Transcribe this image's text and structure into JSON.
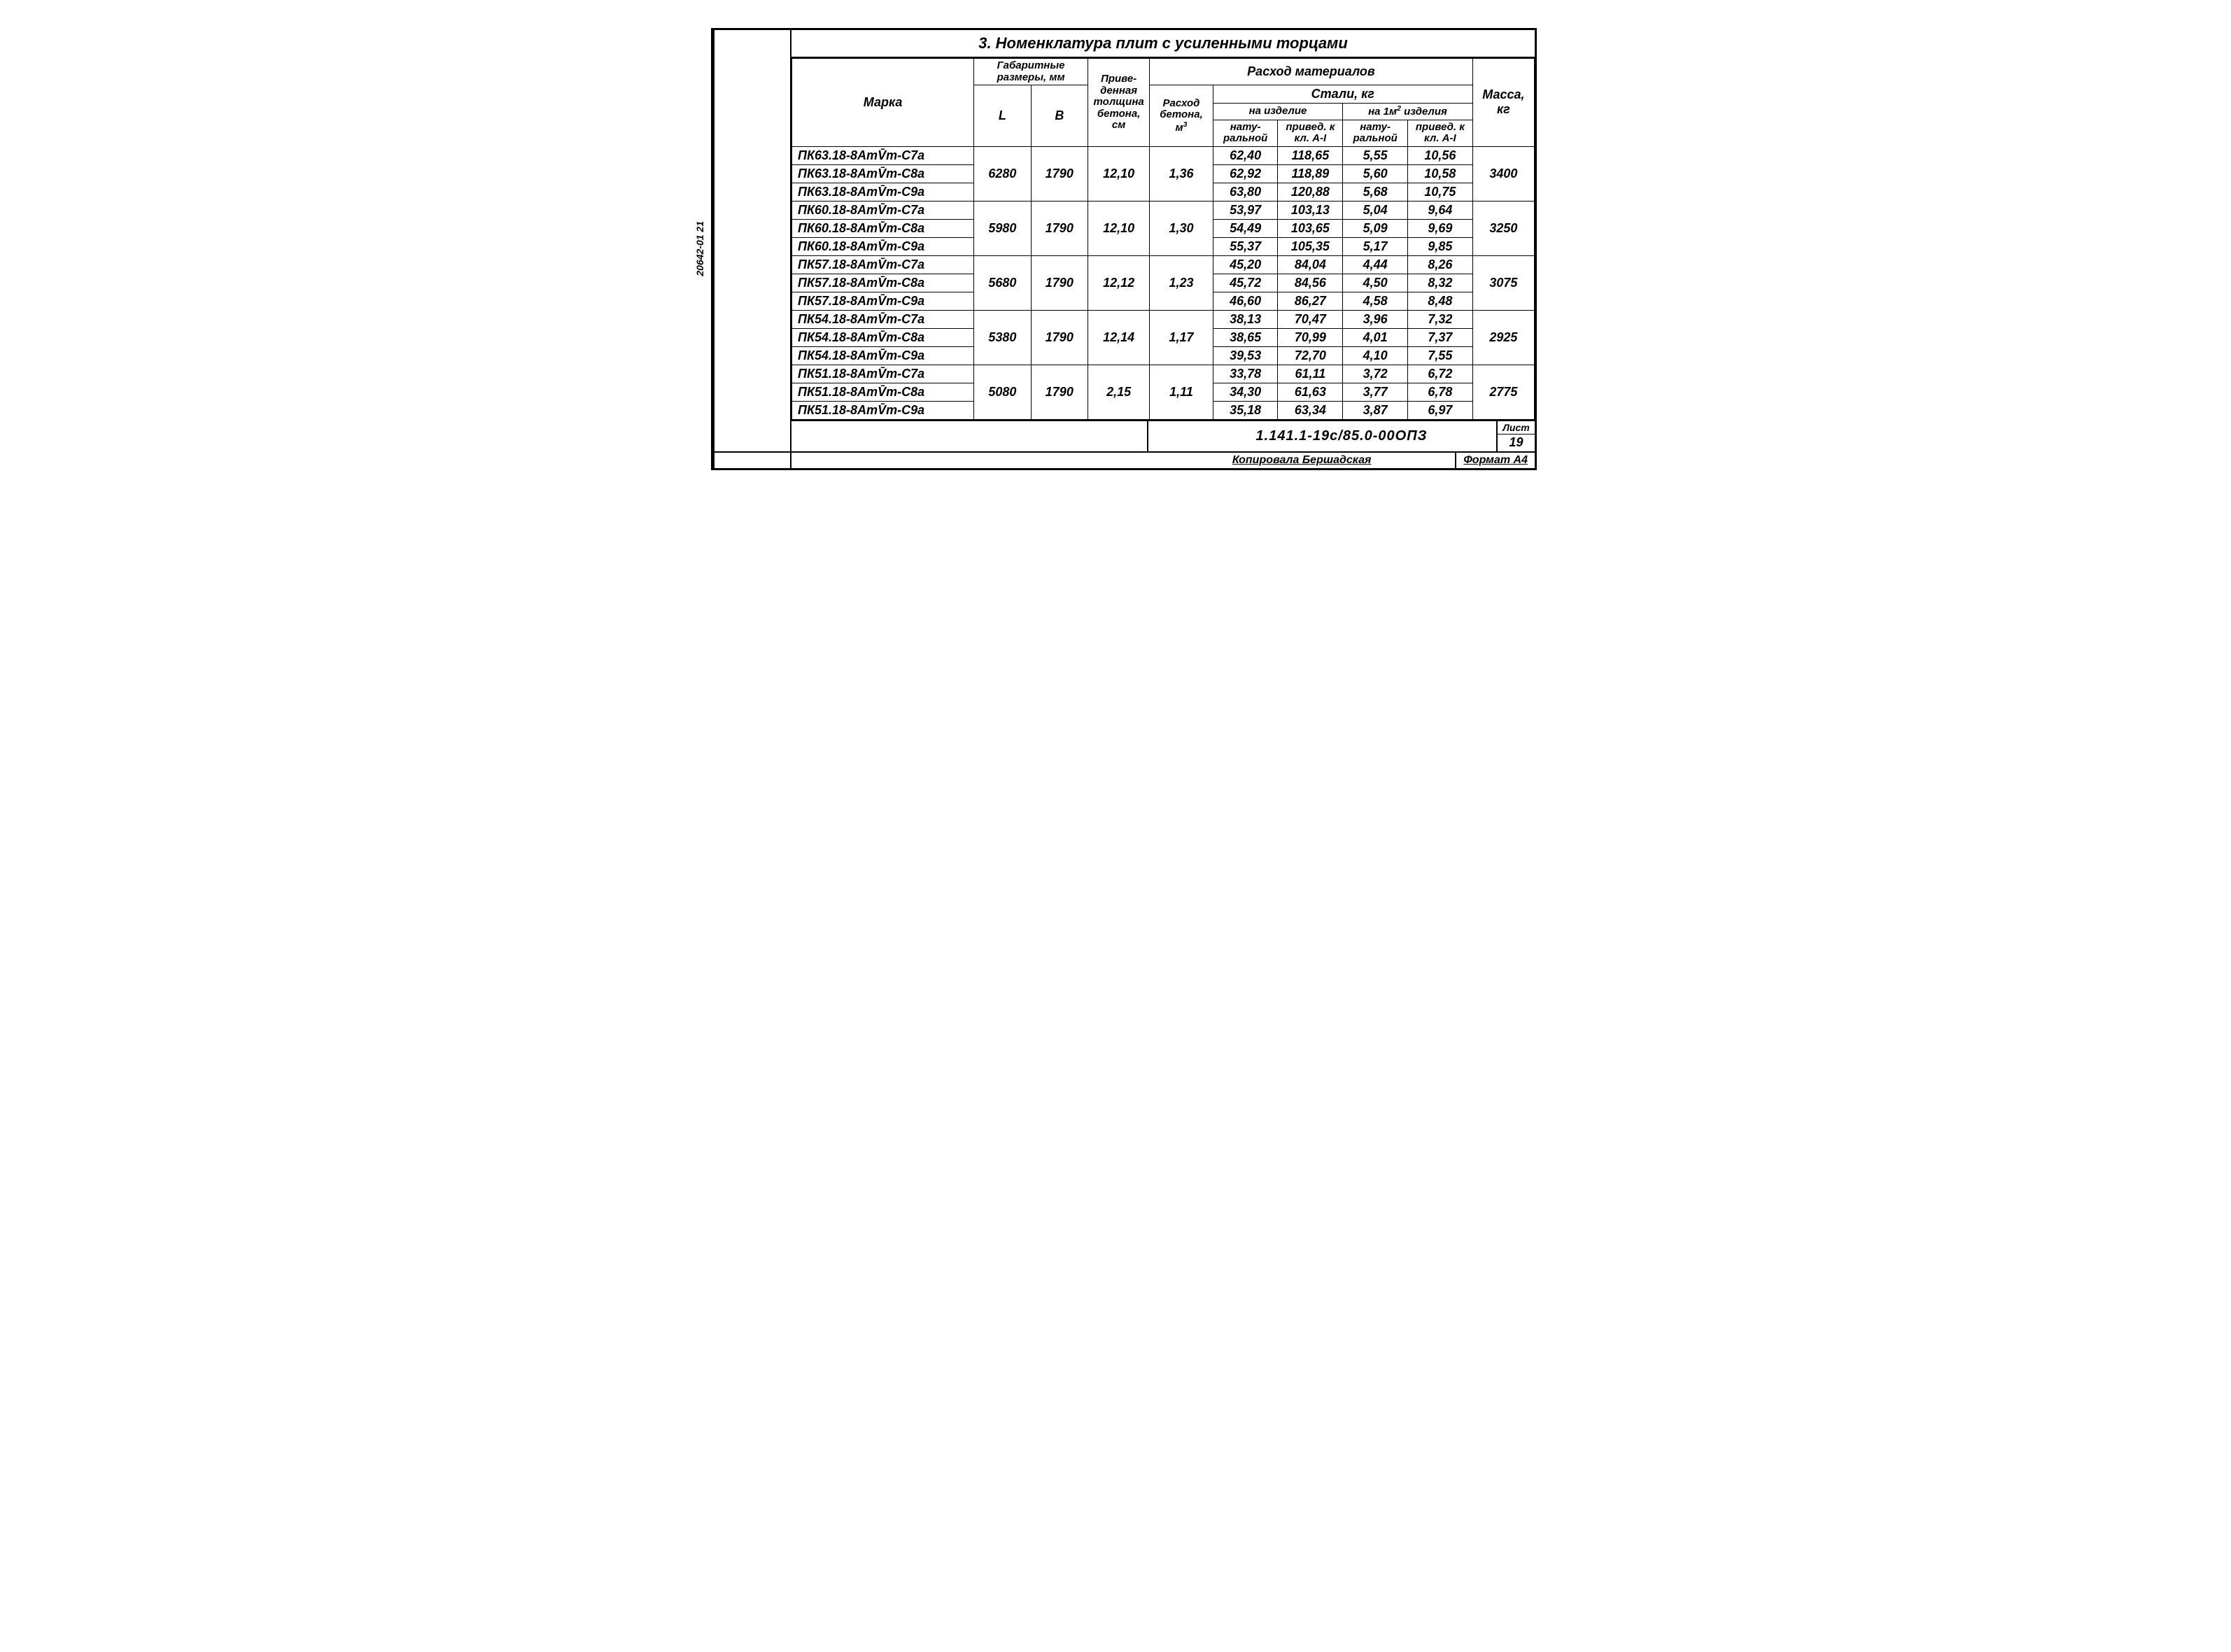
{
  "side_label": "20642-01  21",
  "title": "3. Номенклатура плит с усиленными торцами",
  "headers": {
    "marka": "Марка",
    "dims": "Габаритные размеры, мм",
    "L": "L",
    "B": "В",
    "thickness": "Приве-денная толщина бетона, см",
    "concrete": "Расход бетона, м³",
    "materials": "Расход материалов",
    "steel": "Стали, кг",
    "per_item": "на изделие",
    "per_m2": "на 1м² изделия",
    "natural": "нату-ральной",
    "reduced": "привед. к кл. А-I",
    "mass": "Масса, кг"
  },
  "groups": [
    {
      "L": "6280",
      "B": "1790",
      "thick": "12,10",
      "concrete": "1,36",
      "mass": "3400",
      "rows": [
        {
          "marka": "ПК63.18-8АтV̄т-С7а",
          "s1": "62,40",
          "s2": "118,65",
          "s3": "5,55",
          "s4": "10,56"
        },
        {
          "marka": "ПК63.18-8АтV̄т-С8а",
          "s1": "62,92",
          "s2": "118,89",
          "s3": "5,60",
          "s4": "10,58"
        },
        {
          "marka": "ПК63.18-8АтV̄т-С9а",
          "s1": "63,80",
          "s2": "120,88",
          "s3": "5,68",
          "s4": "10,75"
        }
      ]
    },
    {
      "L": "5980",
      "B": "1790",
      "thick": "12,10",
      "concrete": "1,30",
      "mass": "3250",
      "rows": [
        {
          "marka": "ПК60.18-8АтV̄т-С7а",
          "s1": "53,97",
          "s2": "103,13",
          "s3": "5,04",
          "s4": "9,64"
        },
        {
          "marka": "ПК60.18-8АтV̄т-С8а",
          "s1": "54,49",
          "s2": "103,65",
          "s3": "5,09",
          "s4": "9,69"
        },
        {
          "marka": "ПК60.18-8АтV̄т-С9а",
          "s1": "55,37",
          "s2": "105,35",
          "s3": "5,17",
          "s4": "9,85"
        }
      ]
    },
    {
      "L": "5680",
      "B": "1790",
      "thick": "12,12",
      "concrete": "1,23",
      "mass": "3075",
      "rows": [
        {
          "marka": "ПК57.18-8АтV̄т-С7а",
          "s1": "45,20",
          "s2": "84,04",
          "s3": "4,44",
          "s4": "8,26"
        },
        {
          "marka": "ПК57.18-8АтV̄т-С8а",
          "s1": "45,72",
          "s2": "84,56",
          "s3": "4,50",
          "s4": "8,32"
        },
        {
          "marka": "ПК57.18-8АтV̄т-С9а",
          "s1": "46,60",
          "s2": "86,27",
          "s3": "4,58",
          "s4": "8,48"
        }
      ]
    },
    {
      "L": "5380",
      "B": "1790",
      "thick": "12,14",
      "concrete": "1,17",
      "mass": "2925",
      "rows": [
        {
          "marka": "ПК54.18-8АтV̄т-С7а",
          "s1": "38,13",
          "s2": "70,47",
          "s3": "3,96",
          "s4": "7,32"
        },
        {
          "marka": "ПК54.18-8АтV̄т-С8а",
          "s1": "38,65",
          "s2": "70,99",
          "s3": "4,01",
          "s4": "7,37"
        },
        {
          "marka": "ПК54.18-8АтV̄т-С9а",
          "s1": "39,53",
          "s2": "72,70",
          "s3": "4,10",
          "s4": "7,55"
        }
      ]
    },
    {
      "L": "5080",
      "B": "1790",
      "thick": "2,15",
      "concrete": "1,11",
      "mass": "2775",
      "rows": [
        {
          "marka": "ПК51.18-8АтV̄т-С7а",
          "s1": "33,78",
          "s2": "61,11",
          "s3": "3,72",
          "s4": "6,72"
        },
        {
          "marka": "ПК51.18-8АтV̄т-С8а",
          "s1": "34,30",
          "s2": "61,63",
          "s3": "3,77",
          "s4": "6,78"
        },
        {
          "marka": "ПК51.18-8АтV̄т-С9а",
          "s1": "35,18",
          "s2": "63,34",
          "s3": "3,87",
          "s4": "6,97"
        }
      ]
    }
  ],
  "doc_code": "1.141.1-19с/85.0-00ОПЗ",
  "sheet_label": "Лист",
  "sheet_num": "19",
  "copier": "Копировала Бершадская",
  "format": "Формат А4"
}
